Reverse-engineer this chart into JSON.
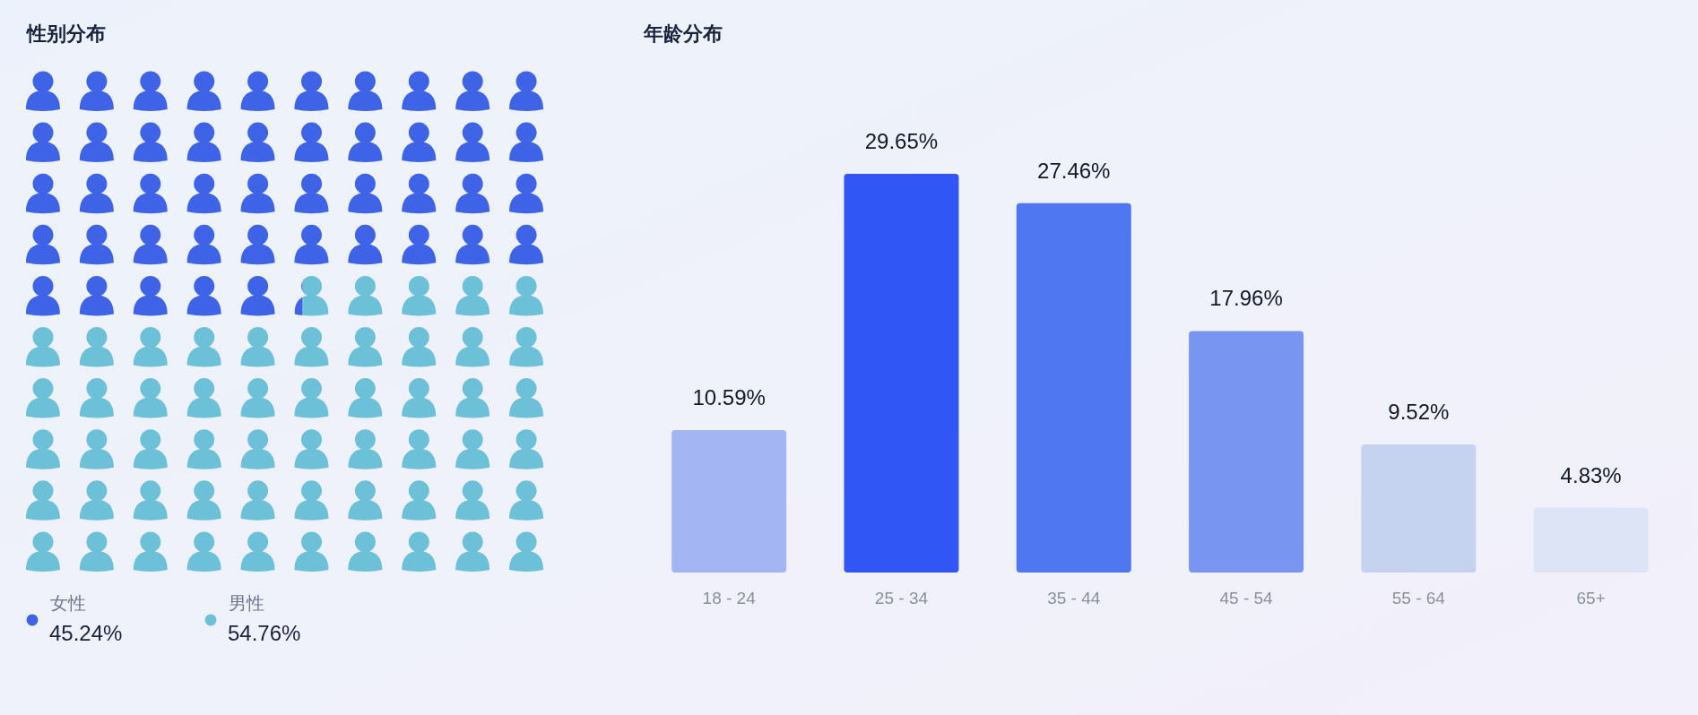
{
  "chart_data": [
    {
      "type": "other",
      "title": "性别分布",
      "categories": [
        "女性",
        "男性"
      ],
      "values": [
        45.24,
        54.76
      ],
      "colors": [
        "#3f63e6",
        "#6cc0d8"
      ],
      "value_labels": [
        "45.24%",
        "54.76%"
      ]
    },
    {
      "type": "bar",
      "title": "年龄分布",
      "categories": [
        "18 - 24",
        "25 - 34",
        "35 - 44",
        "45 - 54",
        "55 - 64",
        "65+"
      ],
      "values": [
        10.59,
        29.65,
        27.46,
        17.96,
        9.52,
        4.83
      ],
      "colors": [
        "#a4b5f4",
        "#3056f5",
        "#5077f2",
        "#7896f1",
        "#c6d3f0",
        "#dde4f5"
      ],
      "value_labels": [
        "10.59%",
        "29.65%",
        "27.46%",
        "17.96%",
        "9.52%",
        "4.83%"
      ]
    }
  ]
}
